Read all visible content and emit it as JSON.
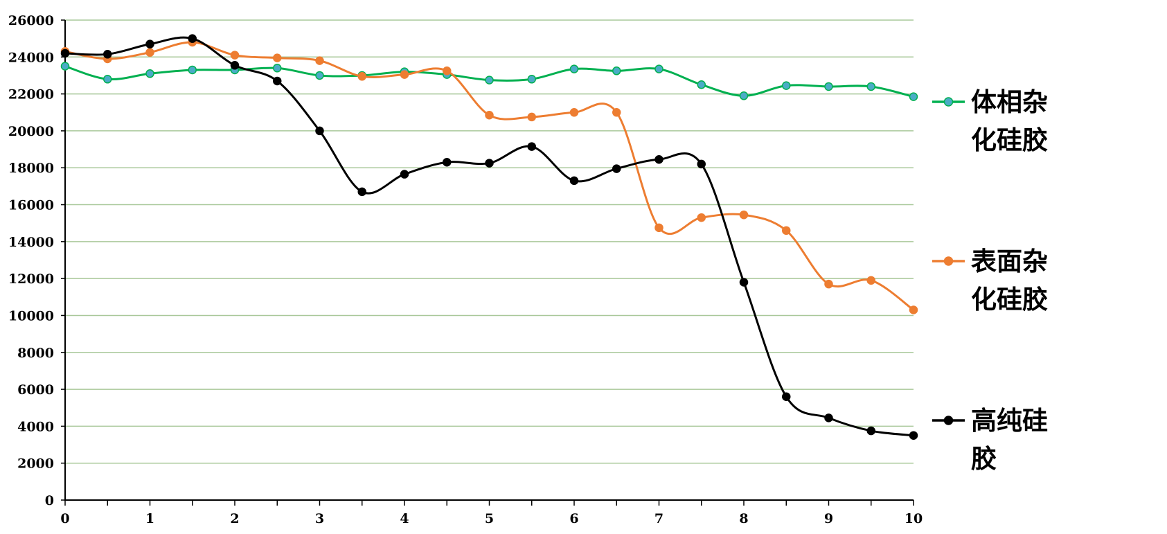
{
  "chart_data": {
    "type": "line",
    "title": "",
    "xlabel": "",
    "ylabel": "",
    "xlim": [
      0,
      10
    ],
    "ylim": [
      0,
      26000
    ],
    "x_ticks": [
      "0",
      "1",
      "2",
      "3",
      "4",
      "5",
      "6",
      "7",
      "8",
      "9",
      "10"
    ],
    "y_ticks": [
      "0",
      "2000",
      "4000",
      "6000",
      "8000",
      "10000",
      "12000",
      "14000",
      "16000",
      "18000",
      "20000",
      "22000",
      "24000",
      "26000"
    ],
    "grid": "horizontal",
    "legend_position": "right",
    "x": [
      0,
      0.5,
      1,
      1.5,
      2,
      2.5,
      3,
      3.5,
      4,
      4.5,
      5,
      5.5,
      6,
      6.5,
      7,
      7.5,
      8,
      8.5,
      9,
      9.5,
      10
    ],
    "series": [
      {
        "name": "体相杂化硅胶",
        "legend_lines": [
          "体相杂",
          "化硅胶"
        ],
        "color": "#00b050",
        "marker_fill": "#4bacc6",
        "values": [
          23500,
          22800,
          23100,
          23300,
          23300,
          23400,
          23000,
          23000,
          23200,
          23050,
          22750,
          22800,
          23350,
          23250,
          23350,
          22500,
          21900,
          22450,
          22400,
          22400,
          21850
        ]
      },
      {
        "name": "表面杂化硅胶",
        "legend_lines": [
          "表面杂",
          "化硅胶"
        ],
        "color": "#ed7d31",
        "marker_fill": "#ed7d31",
        "values": [
          24300,
          23900,
          24250,
          24800,
          24100,
          23950,
          23800,
          22950,
          23050,
          23250,
          20850,
          20750,
          21000,
          21000,
          14750,
          15300,
          15450,
          14600,
          11700,
          11900,
          10300
        ]
      },
      {
        "name": "高纯硅胶",
        "legend_lines": [
          "高纯硅",
          "胶"
        ],
        "color": "#000000",
        "marker_fill": "#000000",
        "values": [
          24200,
          24150,
          24700,
          25000,
          23550,
          22700,
          20000,
          16700,
          17650,
          18300,
          18250,
          19150,
          17300,
          17950,
          18450,
          18200,
          11800,
          5600,
          4450,
          3750,
          3500
        ]
      }
    ]
  }
}
